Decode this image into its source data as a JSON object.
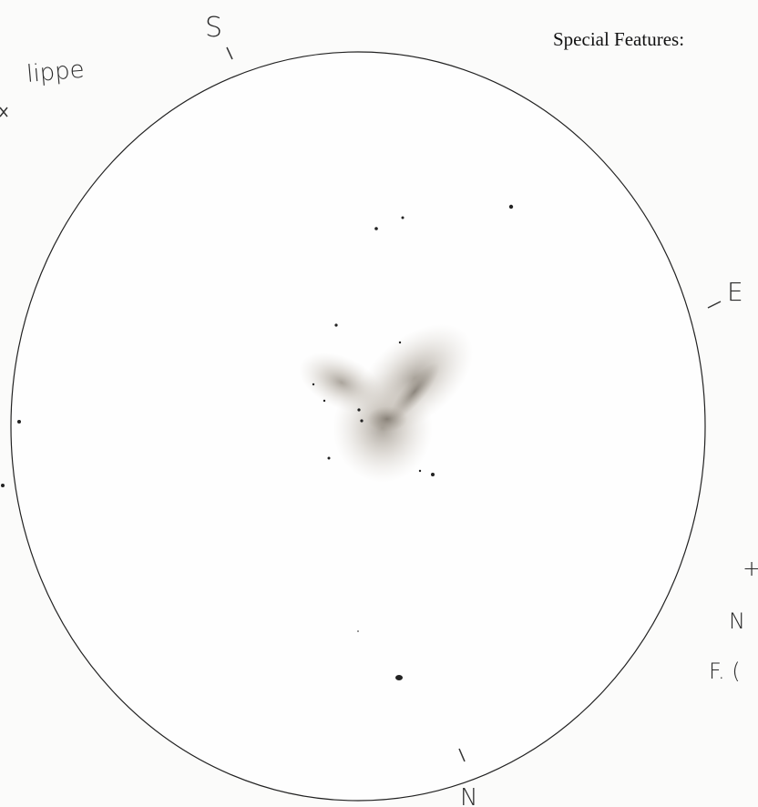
{
  "labels": {
    "south": "S",
    "east": "E",
    "north": "N",
    "observer": "lippe"
  },
  "special_features": "Special Features:",
  "notes": [
    "+",
    "N",
    "F. ("
  ]
}
